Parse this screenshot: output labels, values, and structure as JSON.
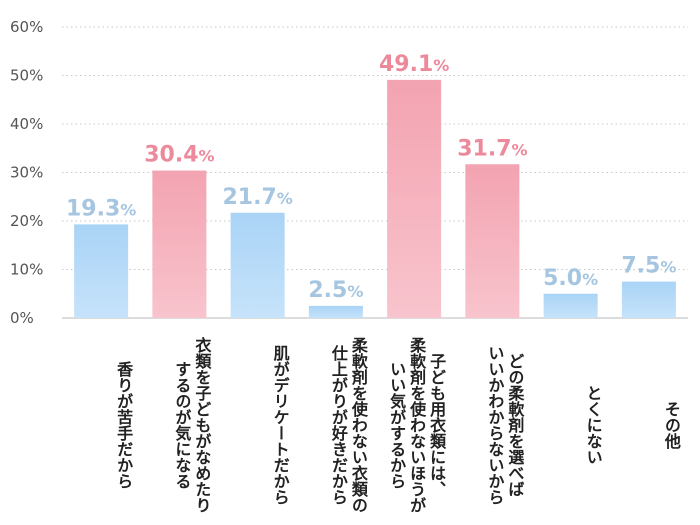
{
  "chart_data": {
    "type": "bar",
    "title": "",
    "xlabel": "",
    "ylabel": "",
    "ylim": [
      0,
      60
    ],
    "yticks": [
      0,
      10,
      20,
      30,
      40,
      50,
      60
    ],
    "ytick_suffix": "%",
    "grid": true,
    "categories": [
      [
        "香りが苦手だから"
      ],
      [
        "衣類を子どもがなめたり",
        "するのが気になる"
      ],
      [
        "肌がデリケートだから"
      ],
      [
        "柔軟剤を使わない衣類の",
        "仕上がりが好きだから"
      ],
      [
        "子ども用衣類には、",
        "柔軟剤を使わないほうが",
        "いい気がするから"
      ],
      [
        "どの柔軟剤を選べば",
        "いいかわからないから"
      ],
      [
        "とくにない"
      ],
      [
        "その他"
      ]
    ],
    "values": [
      19.3,
      30.4,
      21.7,
      2.5,
      49.1,
      31.7,
      5.0,
      7.5
    ],
    "value_labels": [
      "19.3%",
      "30.4%",
      "21.7%",
      "2.5%",
      "49.1%",
      "31.7%",
      "5.0%",
      "7.5%"
    ],
    "highlight": [
      false,
      true,
      false,
      false,
      true,
      true,
      false,
      false
    ],
    "colors": {
      "bar_blue": "#b5dbf8",
      "bar_pink": "#f6b3bf",
      "label_blue": "#a6c5e0",
      "label_pink": "#ec8a9c",
      "grid": "#c8c8c8",
      "axis_text": "#555555"
    }
  }
}
